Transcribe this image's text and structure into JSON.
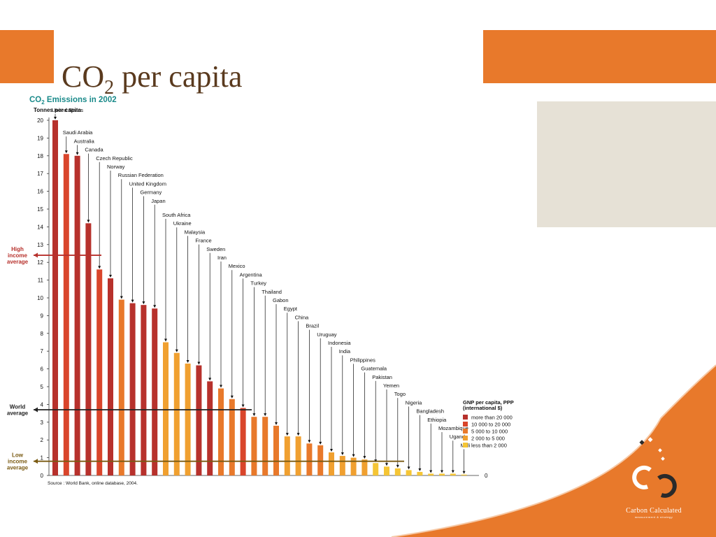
{
  "slide": {
    "title_main": "CO",
    "title_sub": "2",
    "title_rest": " per capita",
    "brand_name": "Carbon Calculated",
    "brand_tagline": "measurement & strategy"
  },
  "colors": {
    "accent_orange": "#e8792b",
    "panel_beige": "#e6e1d6",
    "title_brown": "#5a3a1e",
    "chart_teal": "#1a8a8a",
    "high_line": "#b7312c",
    "world_line": "#222222",
    "low_line": "#7a5a12"
  },
  "chart_data": {
    "type": "bar",
    "title_main": "CO",
    "title_sub": "2",
    "title_rest": " Emissions in 2002",
    "ylabel": "Tonnes per capita",
    "ylim": [
      0,
      20
    ],
    "yticks": [
      "0",
      "1",
      "2",
      "3",
      "4",
      "5",
      "6",
      "7",
      "8",
      "9",
      "10",
      "11",
      "12",
      "13",
      "14",
      "15",
      "16",
      "17",
      "18",
      "19",
      "20"
    ],
    "grid": false,
    "source": "Source : World Bank, online database, 2004.",
    "legend": {
      "title": "GNP per capita, PPP",
      "subtitle": "(international $)",
      "placement": "right",
      "items": [
        {
          "label": "more than 20 000",
          "color": "#b7312c"
        },
        {
          "label": "10 000 to 20 000",
          "color": "#d9452b"
        },
        {
          "label": "5 000 to 10 000",
          "color": "#e8792b"
        },
        {
          "label": "2 000 to 5 000",
          "color": "#f0a030"
        },
        {
          "label": "less than 2 000",
          "color": "#f5c535"
        }
      ]
    },
    "references": [
      {
        "label": [
          "High",
          "income",
          "average"
        ],
        "value": 12.4,
        "color": "#b7312c"
      },
      {
        "label": [
          "World",
          "average"
        ],
        "value": 3.7,
        "color": "#222222"
      },
      {
        "label": [
          "Low",
          "income",
          "average"
        ],
        "value": 0.8,
        "color": "#7a5a12"
      }
    ],
    "bars": [
      {
        "country": "United States",
        "value": 20.0,
        "group": 0
      },
      {
        "country": "Saudi Arabia",
        "value": 18.1,
        "group": 1
      },
      {
        "country": "Australia",
        "value": 18.0,
        "group": 0
      },
      {
        "country": "Canada",
        "value": 14.2,
        "group": 0
      },
      {
        "country": "Czech Republic",
        "value": 11.6,
        "group": 1
      },
      {
        "country": "Norway",
        "value": 11.1,
        "group": 0
      },
      {
        "country": "Russian Federation",
        "value": 9.9,
        "group": 2
      },
      {
        "country": "United Kingdom",
        "value": 9.7,
        "group": 0
      },
      {
        "country": "Germany",
        "value": 9.6,
        "group": 0
      },
      {
        "country": "Japan",
        "value": 9.4,
        "group": 0
      },
      {
        "country": "South Africa",
        "value": 7.5,
        "group": 3
      },
      {
        "country": "Ukraine",
        "value": 6.9,
        "group": 3
      },
      {
        "country": "Malaysia",
        "value": 6.3,
        "group": 3
      },
      {
        "country": "France",
        "value": 6.2,
        "group": 0
      },
      {
        "country": "Sweden",
        "value": 5.3,
        "group": 0
      },
      {
        "country": "Iran",
        "value": 4.9,
        "group": 2
      },
      {
        "country": "Mexico",
        "value": 4.3,
        "group": 2
      },
      {
        "country": "Argentina",
        "value": 3.8,
        "group": 1
      },
      {
        "country": "Turkey",
        "value": 3.3,
        "group": 2
      },
      {
        "country": "Thailand",
        "value": 3.3,
        "group": 2
      },
      {
        "country": "Gabon",
        "value": 2.8,
        "group": 2
      },
      {
        "country": "Egypt",
        "value": 2.2,
        "group": 3
      },
      {
        "country": "China",
        "value": 2.2,
        "group": 3
      },
      {
        "country": "Brazil",
        "value": 1.8,
        "group": 2
      },
      {
        "country": "Uruguay",
        "value": 1.7,
        "group": 2
      },
      {
        "country": "Indonesia",
        "value": 1.3,
        "group": 3
      },
      {
        "country": "India",
        "value": 1.1,
        "group": 3
      },
      {
        "country": "Philippines",
        "value": 1.0,
        "group": 3
      },
      {
        "country": "Guatemala",
        "value": 0.9,
        "group": 3
      },
      {
        "country": "Pakistan",
        "value": 0.7,
        "group": 4
      },
      {
        "country": "Yemen",
        "value": 0.5,
        "group": 4
      },
      {
        "country": "Togo",
        "value": 0.4,
        "group": 4
      },
      {
        "country": "Nigeria",
        "value": 0.3,
        "group": 4
      },
      {
        "country": "Bangladesh",
        "value": 0.2,
        "group": 4
      },
      {
        "country": "Ethiopia",
        "value": 0.1,
        "group": 4
      },
      {
        "country": "Mozambique",
        "value": 0.1,
        "group": 4
      },
      {
        "country": "Uganda",
        "value": 0.1,
        "group": 4
      },
      {
        "country": "Mali",
        "value": 0.05,
        "group": 4
      }
    ]
  }
}
